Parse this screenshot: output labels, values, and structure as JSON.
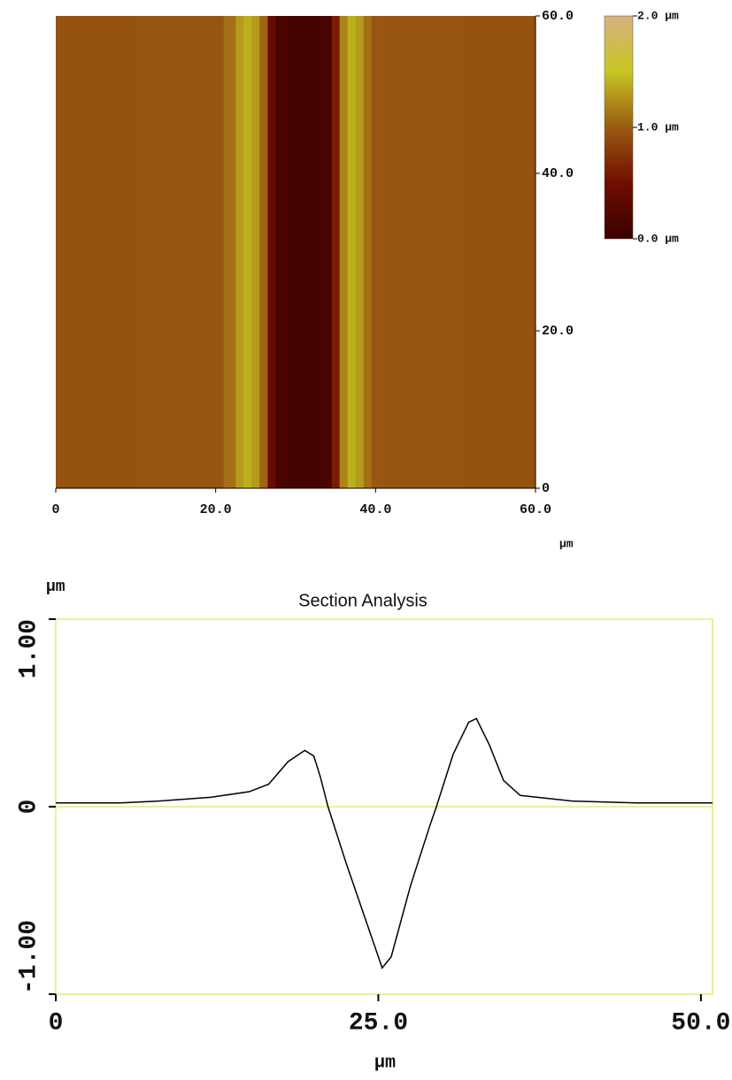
{
  "chart_data": [
    {
      "type": "heatmap",
      "x": [
        0,
        20,
        22,
        23,
        24,
        25,
        26,
        27,
        28,
        30,
        32,
        34,
        35,
        36,
        37,
        38,
        39,
        40,
        42,
        60
      ],
      "values": [
        0.95,
        0.97,
        1.1,
        1.3,
        1.4,
        1.3,
        1.05,
        0.4,
        0.15,
        0.1,
        0.1,
        0.15,
        0.6,
        1.2,
        1.4,
        1.3,
        1.1,
        0.98,
        0.96,
        0.95
      ],
      "xlim": [
        0,
        60
      ],
      "xticks": [
        0,
        {
          "value": 20,
          "label": "20.0"
        },
        {
          "value": 40,
          "label": "40.0"
        },
        {
          "value": 60,
          "label": "60.0"
        }
      ],
      "ylim": [
        0,
        60
      ],
      "yticks": [
        0,
        {
          "value": 20,
          "label": "20.0"
        },
        {
          "value": 40,
          "label": "40.0"
        },
        {
          "value": 60,
          "label": "60.0"
        }
      ],
      "xlabel": "µm",
      "colorbar": {
        "clim": [
          0,
          2
        ],
        "ticks": [
          {
            "value": 0,
            "label": "0.0 µm"
          },
          {
            "value": 1,
            "label": "1.0 µm"
          },
          {
            "value": 2,
            "label": "2.0 µm"
          }
        ],
        "colors": [
          "#3a0000",
          "#700e00",
          "#9a5a12",
          "#c6c622",
          "#d8b07e"
        ]
      }
    },
    {
      "type": "line",
      "title": "Section Analysis",
      "x": [
        0,
        5,
        8,
        12,
        15,
        16.5,
        18,
        19.3,
        20,
        20.5,
        21.1,
        22.5,
        24,
        25.3,
        26,
        27.5,
        29,
        29.5,
        30.8,
        32,
        32.6,
        33.6,
        34.7,
        36,
        40,
        45,
        50.9
      ],
      "values": [
        0.02,
        0.02,
        0.03,
        0.05,
        0.08,
        0.12,
        0.24,
        0.3,
        0.27,
        0.16,
        0.0,
        -0.3,
        -0.6,
        -0.86,
        -0.8,
        -0.42,
        -0.1,
        0.0,
        0.28,
        0.45,
        0.47,
        0.33,
        0.14,
        0.06,
        0.03,
        0.02,
        0.02
      ],
      "color": "#000000",
      "xlim": [
        0,
        50.9
      ],
      "xticks": [
        0,
        {
          "value": 25,
          "label": "25.0"
        },
        {
          "value": 50,
          "label": "50.0"
        }
      ],
      "ylim": [
        -1,
        1
      ],
      "yticks": [
        {
          "value": -1,
          "label": "-1.00"
        },
        0,
        {
          "value": 1,
          "label": "1.00"
        }
      ],
      "xlabel": "µm",
      "ylabel": "µm",
      "frame_color": "#e8f09a",
      "zero_line": true
    }
  ]
}
